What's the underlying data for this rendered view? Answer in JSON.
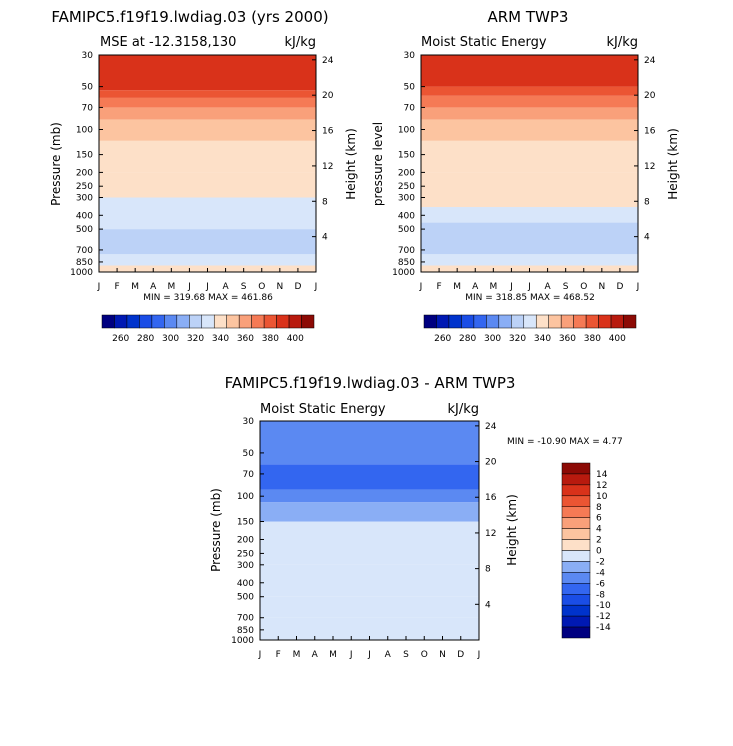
{
  "chart_data": [
    {
      "type": "heatmap",
      "title": "FAMIPC5.f19f19.lwdiag.03 (yrs 2000)",
      "subtitle_left": "MSE at -12.3158,130",
      "subtitle_right": "kJ/kg",
      "xlabel": "",
      "ylabel": "Pressure (mb)",
      "ylabel_right": "Height (km)",
      "x_ticks": [
        "J",
        "F",
        "M",
        "A",
        "M",
        "J",
        "J",
        "A",
        "S",
        "O",
        "N",
        "D",
        "J"
      ],
      "y_ticks": [
        "30",
        "50",
        "70",
        "100",
        "150",
        "200",
        "250",
        "300",
        "400",
        "500",
        "700",
        "850",
        "1000"
      ],
      "y_ticks_right": [
        "24",
        "20",
        "16",
        "12",
        "8",
        "4"
      ],
      "stats": "MIN = 319.68 MAX = 461.86",
      "min": 319.68,
      "max": 461.86,
      "levels": [
        260,
        270,
        280,
        290,
        300,
        310,
        320,
        330,
        340,
        350,
        360,
        370,
        380,
        390,
        400
      ],
      "colorbar_labels": [
        "260",
        "280",
        "300",
        "320",
        "340",
        "360",
        "380",
        "400"
      ],
      "colorbar_position": "below",
      "bands": [
        {
          "p": 1000,
          "v": 342
        },
        {
          "p": 900,
          "v": 332
        },
        {
          "p": 750,
          "v": 325
        },
        {
          "p": 500,
          "v": 335
        },
        {
          "p": 300,
          "v": 342
        },
        {
          "p": 200,
          "v": 345
        },
        {
          "p": 120,
          "v": 350
        },
        {
          "p": 100,
          "v": 355
        },
        {
          "p": 85,
          "v": 365
        },
        {
          "p": 70,
          "v": 375
        },
        {
          "p": 60,
          "v": 385
        },
        {
          "p": 53,
          "v": 395
        },
        {
          "p": 30,
          "v": 420
        }
      ]
    },
    {
      "type": "heatmap",
      "title": "ARM TWP3",
      "subtitle_left": "Moist Static Energy",
      "subtitle_right": "kJ/kg",
      "xlabel": "",
      "ylabel": "pressure level",
      "ylabel_right": "Height (km)",
      "x_ticks": [
        "J",
        "F",
        "M",
        "A",
        "M",
        "J",
        "J",
        "A",
        "S",
        "O",
        "N",
        "D",
        "J"
      ],
      "y_ticks": [
        "30",
        "50",
        "70",
        "100",
        "150",
        "200",
        "250",
        "300",
        "400",
        "500",
        "700",
        "850",
        "1000"
      ],
      "y_ticks_right": [
        "24",
        "20",
        "16",
        "12",
        "8",
        "4"
      ],
      "stats": "MIN = 318.85 MAX = 468.52",
      "min": 318.85,
      "max": 468.52,
      "levels": [
        260,
        270,
        280,
        290,
        300,
        310,
        320,
        330,
        340,
        350,
        360,
        370,
        380,
        390,
        400
      ],
      "colorbar_labels": [
        "260",
        "280",
        "300",
        "320",
        "340",
        "360",
        "380",
        "400"
      ],
      "colorbar_position": "below",
      "bands": [
        {
          "p": 1000,
          "v": 342
        },
        {
          "p": 900,
          "v": 332
        },
        {
          "p": 750,
          "v": 325
        },
        {
          "p": 450,
          "v": 335
        },
        {
          "p": 350,
          "v": 342
        },
        {
          "p": 200,
          "v": 345
        },
        {
          "p": 120,
          "v": 350
        },
        {
          "p": 100,
          "v": 355
        },
        {
          "p": 85,
          "v": 365
        },
        {
          "p": 70,
          "v": 375
        },
        {
          "p": 58,
          "v": 385
        },
        {
          "p": 50,
          "v": 395
        },
        {
          "p": 30,
          "v": 420
        }
      ]
    },
    {
      "type": "heatmap",
      "title": "FAMIPC5.f19f19.lwdiag.03 - ARM TWP3",
      "subtitle_left": "Moist Static Energy",
      "subtitle_right": "kJ/kg",
      "xlabel": "",
      "ylabel": "Pressure (mb)",
      "ylabel_right": "Height (km)",
      "x_ticks": [
        "J",
        "F",
        "M",
        "A",
        "M",
        "J",
        "J",
        "A",
        "S",
        "O",
        "N",
        "D",
        "J"
      ],
      "y_ticks": [
        "30",
        "50",
        "70",
        "100",
        "150",
        "200",
        "250",
        "300",
        "400",
        "500",
        "700",
        "850",
        "1000"
      ],
      "y_ticks_right": [
        "24",
        "20",
        "16",
        "12",
        "8",
        "4"
      ],
      "stats": "MIN = -10.90 MAX =   4.77",
      "min": -10.9,
      "max": 4.77,
      "levels": [
        -14,
        -12,
        -10,
        -8,
        -6,
        -4,
        -2,
        0,
        2,
        4,
        6,
        8,
        10,
        12,
        14
      ],
      "colorbar_labels": [
        "14",
        "12",
        "10",
        "8",
        "6",
        "4",
        "2",
        "0",
        "-2",
        "-4",
        "-6",
        "-8",
        "-10",
        "-12",
        "-14"
      ],
      "colorbar_position": "right",
      "bands": [
        {
          "p": 1000,
          "v": -1
        },
        {
          "p": 700,
          "v": -1
        },
        {
          "p": 500,
          "v": -1
        },
        {
          "p": 300,
          "v": -1
        },
        {
          "p": 200,
          "v": -2
        },
        {
          "p": 150,
          "v": -3
        },
        {
          "p": 110,
          "v": -5
        },
        {
          "p": 90,
          "v": -7
        },
        {
          "p": 60,
          "v": -6
        },
        {
          "p": 30,
          "v": -5
        }
      ]
    }
  ]
}
